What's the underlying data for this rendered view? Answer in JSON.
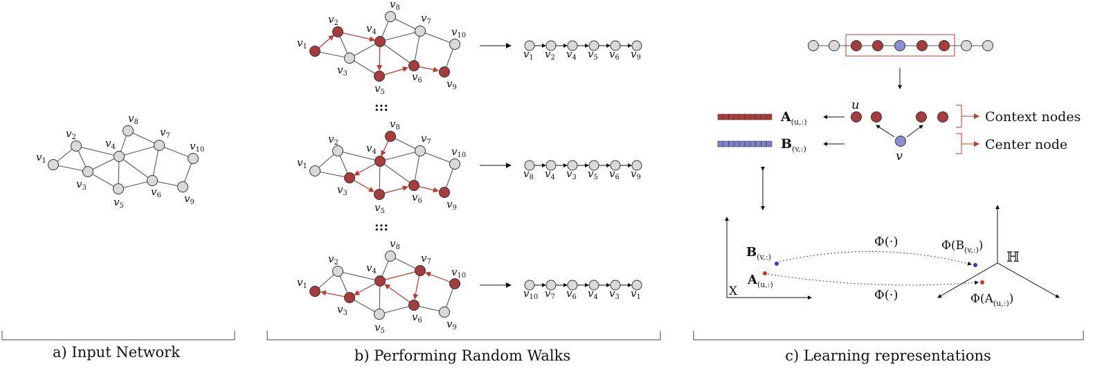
{
  "captions": {
    "a": "a) Input Network",
    "b": "b) Performing Random Walks",
    "c": "c) Learning representations"
  },
  "node_labels": {
    "v1": "v",
    "v1_sub": "1",
    "v2": "v",
    "v2_sub": "2",
    "v3": "v",
    "v3_sub": "3",
    "v4": "v",
    "v4_sub": "4",
    "v5": "v",
    "v5_sub": "5",
    "v6": "v",
    "v6_sub": "6",
    "v7": "v",
    "v7_sub": "7",
    "v8": "v",
    "v8_sub": "8",
    "v9": "v",
    "v9_sub": "9",
    "v10": "v",
    "v10_sub": "10"
  },
  "walks": [
    [
      "1",
      "2",
      "4",
      "5",
      "6",
      "9"
    ],
    [
      "8",
      "4",
      "3",
      "5",
      "6",
      "9"
    ],
    [
      "10",
      "7",
      "6",
      "4",
      "3",
      "1"
    ]
  ],
  "ellipsis": ":::",
  "panel_c": {
    "u_label": "u",
    "v_label": "v",
    "context_label": "Context nodes",
    "center_label": "Center node",
    "A_label": "A",
    "A_sub": "(u,:)",
    "B_label": "B",
    "B_sub": "(v,:)",
    "phi_top": "Φ(·)",
    "phi_bottom": "Φ(·)",
    "phi_B": "Φ(B",
    "phi_B_sub": "(v,:)",
    "phi_B_close": ")",
    "phi_A": "Φ(A",
    "phi_A_sub": "(u,:)",
    "phi_A_close": ")",
    "space_X": "X",
    "space_H": "ℍ"
  },
  "colors": {
    "red_node": "#a83b3b",
    "blue_node": "#8a8fd6",
    "gray_node": "#d9d9d9",
    "red_edge": "#c0392b",
    "embed_red": "#b03a3a",
    "embed_blue": "#7b80cc"
  }
}
